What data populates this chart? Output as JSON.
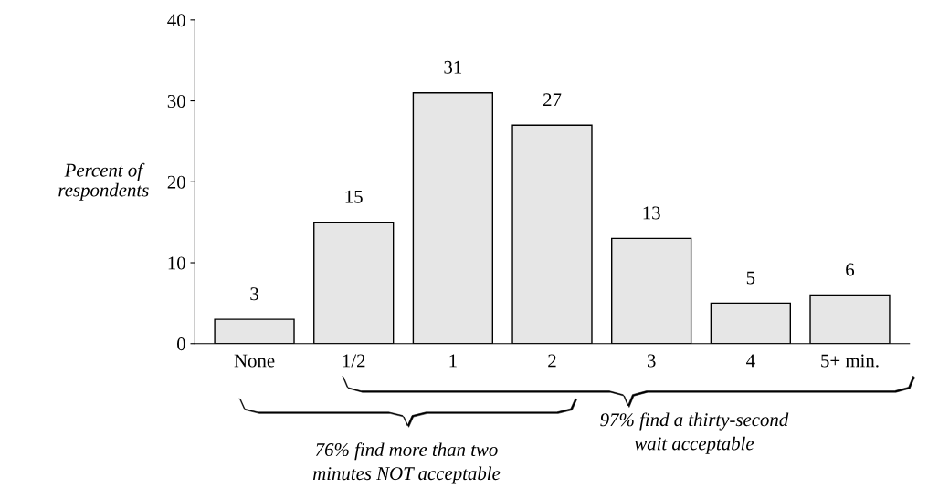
{
  "chart_data": {
    "type": "bar",
    "ylabel": "Percent of\nrespondents",
    "categories": [
      "None",
      "1/2",
      "1",
      "2",
      "3",
      "4",
      "5+ min."
    ],
    "values": [
      3,
      15,
      31,
      27,
      13,
      5,
      6
    ],
    "color": "#e6e6e6",
    "ylim": [
      0,
      40
    ],
    "yticks": [
      0,
      10,
      20,
      30,
      40
    ],
    "data_labels": true,
    "grid": false,
    "legend": false,
    "annotations": [
      "76% find more than two\nminutes NOT acceptable",
      "97% find a thirty-second\nwait acceptable"
    ]
  }
}
